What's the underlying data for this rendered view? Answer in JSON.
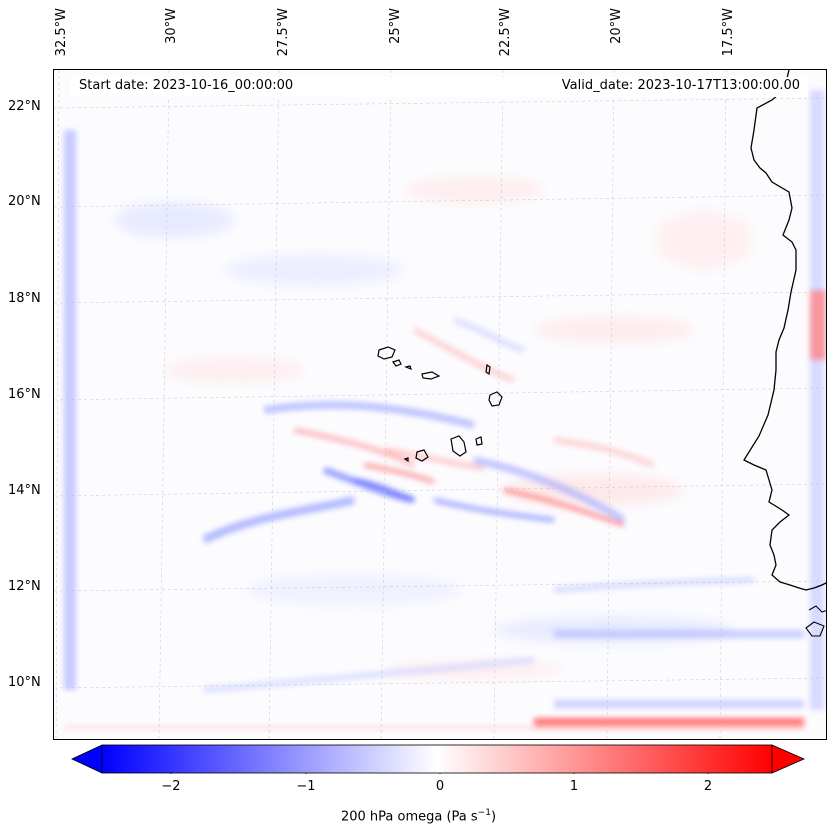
{
  "map": {
    "start_label": "Start date: 2023-10-16_00:00:00",
    "valid_label": "Valid_date: 2023-10-17T13:00:00.00",
    "lon_ticks": [
      "32.5°W",
      "30°W",
      "27.5°W",
      "25°W",
      "22.5°W",
      "20°W",
      "17.5°W"
    ],
    "lat_ticks": [
      "22°N",
      "20°N",
      "18°N",
      "16°N",
      "14°N",
      "12°N",
      "10°N"
    ],
    "ocean_color": "#fcfcff",
    "coast_color": "#000000"
  },
  "colorbar": {
    "ticks": [
      "−2",
      "−1",
      "0",
      "1",
      "2"
    ],
    "label": "200 hPa omega (Pa s",
    "label_sup": "−1",
    "label_end": ")",
    "min_color": "#0000ff",
    "mid_color": "#ffffff",
    "max_color": "#ff0000",
    "vmin": -2.5,
    "vmax": 2.5,
    "extend": "both"
  }
}
